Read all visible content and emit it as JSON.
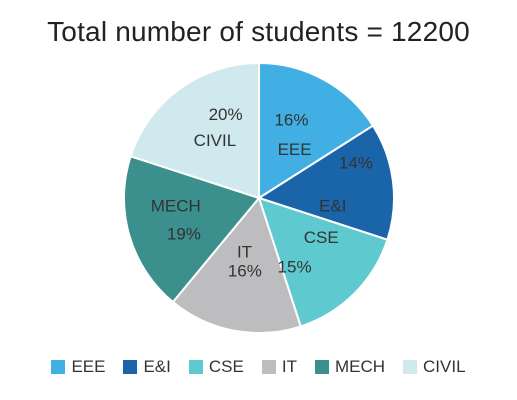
{
  "chart_data": {
    "type": "pie",
    "title": "Total number of students = 12200",
    "slices": [
      {
        "name": "EEE",
        "value": 16,
        "label": "16%",
        "color": "#41aee4"
      },
      {
        "name": "E&I",
        "value": 14,
        "label": "14%",
        "color": "#1a65aa"
      },
      {
        "name": "CSE",
        "value": 15,
        "label": "15%",
        "color": "#5fc9d0"
      },
      {
        "name": "IT",
        "value": 16,
        "label": "16%",
        "color": "#bdbdbf"
      },
      {
        "name": "MECH",
        "value": 19,
        "label": "19%",
        "color": "#3b8f8c"
      },
      {
        "name": "CIVIL",
        "value": 20,
        "label": "20%",
        "color": "#cfe9ef"
      }
    ],
    "start_angle_deg": 0,
    "direction": "clockwise",
    "legend_position": "bottom"
  }
}
